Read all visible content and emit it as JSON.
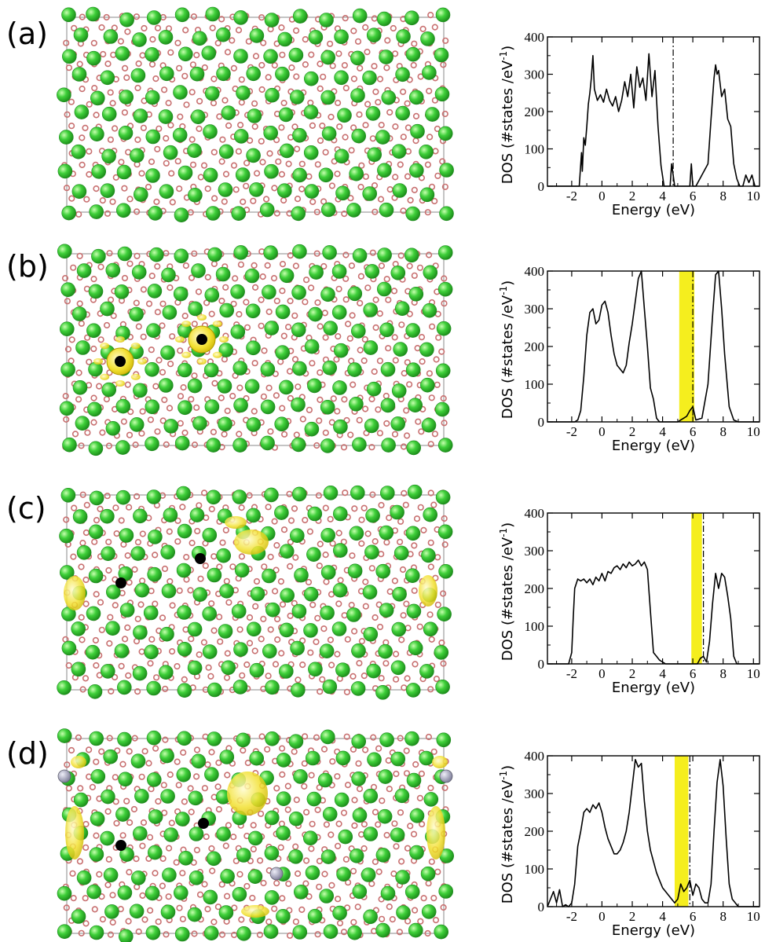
{
  "figure": {
    "panels": [
      {
        "letter": "(a)",
        "structure": {
          "defect_atoms": 0,
          "substituted_atoms": 0,
          "charge_density": "none"
        },
        "chart_data": {
          "type": "line",
          "xlabel": "Energy (eV)",
          "ylabel": "DOS (#states /eV",
          "ylabel_superscript": "-1",
          "ylabel_close": ")",
          "xticks": [
            "-2",
            "0",
            "2",
            "4",
            "6",
            "8",
            "10"
          ],
          "yticks": [
            "0",
            "100",
            "200",
            "300",
            "400"
          ],
          "xlim": [
            -3.6,
            10.4
          ],
          "ylim": [
            0,
            400
          ],
          "fermi_level": 4.7,
          "gap_band": null,
          "series": [
            {
              "x": [
                -3.6,
                -1.5,
                -1.35,
                -1.3,
                -1.2,
                -1.1,
                -1.0,
                -0.9,
                -0.8,
                -0.7,
                -0.6,
                -0.5,
                -0.3,
                -0.1,
                0.1,
                0.3,
                0.5,
                0.7,
                0.9,
                1.1,
                1.3,
                1.5,
                1.7,
                1.9,
                2.1,
                2.3,
                2.5,
                2.7,
                2.9,
                3.1,
                3.3,
                3.5,
                3.7,
                3.9,
                4.1,
                4.3,
                4.5,
                4.6,
                4.8,
                5.0,
                5.8,
                5.9,
                6.0,
                6.1,
                6.2,
                7.0,
                7.2,
                7.4,
                7.5,
                7.6,
                7.7,
                7.9,
                8.1,
                8.3,
                8.5,
                8.7,
                8.9,
                9.1,
                9.3,
                9.5,
                9.7,
                9.9,
                10.1,
                10.4
              ],
              "y": [
                0,
                0,
                90,
                40,
                130,
                110,
                160,
                220,
                250,
                290,
                350,
                260,
                230,
                245,
                225,
                260,
                230,
                215,
                240,
                200,
                230,
                280,
                240,
                300,
                210,
                320,
                265,
                290,
                230,
                355,
                240,
                310,
                160,
                55,
                0,
                0,
                0,
                60,
                0,
                0,
                0,
                60,
                0,
                0,
                0,
                60,
                180,
                290,
                325,
                300,
                310,
                240,
                260,
                180,
                160,
                60,
                20,
                0,
                0,
                30,
                10,
                30,
                0,
                0
              ]
            }
          ]
        }
      },
      {
        "letter": "(b)",
        "structure": {
          "defect_atoms": 2,
          "substituted_atoms": 0,
          "charge_density": "localized"
        },
        "chart_data": {
          "type": "line",
          "xlabel": "Energy (eV)",
          "ylabel": "DOS (#states /eV",
          "ylabel_superscript": "-1",
          "ylabel_close": ")",
          "xticks": [
            "-2",
            "0",
            "2",
            "4",
            "6",
            "8",
            "10"
          ],
          "yticks": [
            "0",
            "100",
            "200",
            "300",
            "400"
          ],
          "xlim": [
            -3.6,
            10.4
          ],
          "ylim": [
            0,
            400
          ],
          "fermi_level": 6.0,
          "gap_band": [
            5.1,
            6.1
          ],
          "series": [
            {
              "x": [
                -3.6,
                -1.8,
                -1.6,
                -1.4,
                -1.2,
                -1.0,
                -0.8,
                -0.6,
                -0.4,
                -0.2,
                0.0,
                0.2,
                0.4,
                0.6,
                0.8,
                1.0,
                1.2,
                1.4,
                1.6,
                1.8,
                2.0,
                2.2,
                2.4,
                2.6,
                2.8,
                3.0,
                3.2,
                3.4,
                3.6,
                3.8,
                4.0,
                4.2,
                4.4,
                5.0,
                5.2,
                5.4,
                5.6,
                5.8,
                6.0,
                6.2,
                6.6,
                7.0,
                7.3,
                7.5,
                7.7,
                7.9,
                8.1,
                8.4,
                8.7,
                9.0,
                10.4
              ],
              "y": [
                0,
                0,
                5,
                30,
                120,
                230,
                290,
                300,
                260,
                270,
                310,
                320,
                290,
                230,
                180,
                150,
                140,
                130,
                150,
                210,
                260,
                320,
                380,
                400,
                300,
                200,
                90,
                60,
                10,
                0,
                0,
                0,
                0,
                0,
                5,
                10,
                15,
                30,
                40,
                5,
                10,
                100,
                280,
                390,
                400,
                300,
                180,
                40,
                5,
                0,
                0
              ]
            }
          ]
        }
      },
      {
        "letter": "(c)",
        "structure": {
          "defect_atoms": 2,
          "substituted_atoms": 0,
          "charge_density": "delocalized"
        },
        "chart_data": {
          "type": "line",
          "xlabel": "Energy (eV)",
          "ylabel": "DOS (#states /eV",
          "ylabel_superscript": "-1",
          "ylabel_close": ")",
          "xticks": [
            "-2",
            "0",
            "2",
            "4",
            "6",
            "8",
            "10"
          ],
          "yticks": [
            "0",
            "100",
            "200",
            "300",
            "400"
          ],
          "xlim": [
            -3.6,
            10.4
          ],
          "ylim": [
            0,
            400
          ],
          "fermi_level": 6.7,
          "gap_band": [
            5.9,
            6.6
          ],
          "series": [
            {
              "x": [
                -3.6,
                -2.2,
                -2.0,
                -1.9,
                -1.8,
                -1.6,
                -1.4,
                -1.2,
                -1.0,
                -0.8,
                -0.6,
                -0.4,
                -0.2,
                0.0,
                0.2,
                0.4,
                0.6,
                0.8,
                1.0,
                1.2,
                1.4,
                1.6,
                1.8,
                2.0,
                2.2,
                2.4,
                2.6,
                2.8,
                3.0,
                3.2,
                3.4,
                3.6,
                3.8,
                4.2,
                6.0,
                6.3,
                6.5,
                6.7,
                6.9,
                7.1,
                7.3,
                7.5,
                7.7,
                7.9,
                8.1,
                8.3,
                8.5,
                8.7,
                8.9,
                10.4
              ],
              "y": [
                0,
                0,
                30,
                120,
                200,
                225,
                220,
                225,
                215,
                225,
                210,
                230,
                220,
                240,
                220,
                245,
                240,
                255,
                260,
                250,
                265,
                255,
                270,
                260,
                265,
                275,
                260,
                270,
                250,
                140,
                30,
                20,
                10,
                0,
                0,
                0,
                15,
                20,
                5,
                60,
                160,
                240,
                200,
                240,
                230,
                180,
                120,
                20,
                0,
                0
              ]
            }
          ]
        }
      },
      {
        "letter": "(d)",
        "structure": {
          "defect_atoms": 2,
          "substituted_atoms": 3,
          "charge_density": "delocalized"
        },
        "chart_data": {
          "type": "line",
          "xlabel": "Energy (eV)",
          "ylabel": "DOS (#states /eV",
          "ylabel_superscript": "-1",
          "ylabel_close": ")",
          "xticks": [
            "-2",
            "0",
            "2",
            "4",
            "6",
            "8",
            "10"
          ],
          "yticks": [
            "0",
            "100",
            "200",
            "300",
            "400"
          ],
          "xlim": [
            -3.6,
            10.4
          ],
          "ylim": [
            0,
            400
          ],
          "fermi_level": 5.8,
          "gap_band": [
            4.8,
            5.7
          ],
          "series": [
            {
              "x": [
                -3.6,
                -3.2,
                -3.0,
                -2.8,
                -2.6,
                -2.4,
                -2.2,
                -2.0,
                -1.8,
                -1.6,
                -1.4,
                -1.2,
                -1.0,
                -0.8,
                -0.6,
                -0.4,
                -0.2,
                0.0,
                0.2,
                0.4,
                0.6,
                0.8,
                1.0,
                1.2,
                1.4,
                1.6,
                1.8,
                2.0,
                2.2,
                2.4,
                2.6,
                2.8,
                3.0,
                3.2,
                3.4,
                3.6,
                3.8,
                4.0,
                4.2,
                4.4,
                4.6,
                4.8,
                5.0,
                5.2,
                5.4,
                5.6,
                5.8,
                6.0,
                6.2,
                6.4,
                6.6,
                6.8,
                7.0,
                7.2,
                7.4,
                7.6,
                7.8,
                8.0,
                8.2,
                8.4,
                8.6,
                9.0,
                10.4
              ],
              "y": [
                0,
                40,
                10,
                45,
                0,
                5,
                0,
                10,
                60,
                160,
                200,
                250,
                260,
                250,
                270,
                260,
                275,
                250,
                210,
                180,
                160,
                140,
                140,
                150,
                170,
                200,
                250,
                320,
                390,
                370,
                380,
                280,
                200,
                150,
                120,
                90,
                70,
                50,
                40,
                30,
                20,
                10,
                20,
                60,
                40,
                50,
                70,
                30,
                60,
                50,
                20,
                10,
                10,
                60,
                200,
                330,
                390,
                320,
                180,
                60,
                20,
                0,
                0
              ]
            }
          ]
        }
      }
    ]
  }
}
